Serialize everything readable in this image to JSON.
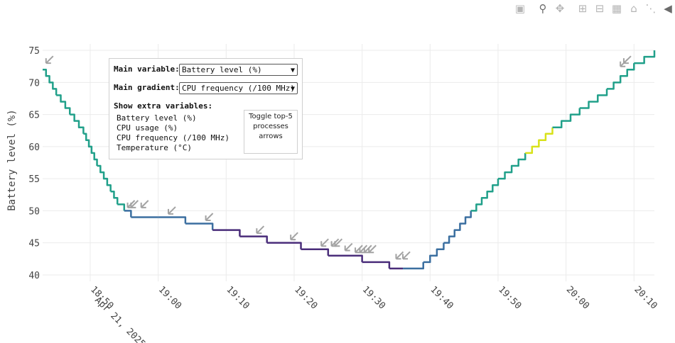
{
  "modebar": {
    "icons": [
      "camera-icon",
      "zoom-icon",
      "pan-icon",
      "zoom-in-icon",
      "zoom-out-icon",
      "autoscale-icon",
      "home-icon",
      "spike-icon",
      "hover-icon"
    ]
  },
  "controls": {
    "main_variable_label": "Main variable:",
    "main_variable_value": "Battery level (%)",
    "main_gradient_label": "Main gradient:",
    "main_gradient_value": "CPU frequency (/100 MHz)",
    "extra_title": "Show extra variables:",
    "extra_items": [
      "Battery level (%)",
      "CPU usage (%)",
      "CPU frequency (/100 MHz)",
      "Temperature (°C)"
    ],
    "toggle_label": "Toggle top-5 processes arrows"
  },
  "chart_data": {
    "type": "line",
    "title": "",
    "xlabel": "",
    "ylabel": "Battery level (%)",
    "ylim": [
      39,
      76
    ],
    "xlim": [
      "2025-04-21 18:43:00",
      "2025-04-21 20:13:00"
    ],
    "y_ticks": [
      40,
      45,
      50,
      55,
      60,
      65,
      70,
      75
    ],
    "x_ticks": [
      "2025-04-21 18:50",
      "2025-04-21 19:00",
      "2025-04-21 19:10",
      "2025-04-21 19:20",
      "2025-04-21 19:30",
      "2025-04-21 19:40",
      "2025-04-21 19:50",
      "2025-04-21 20:00",
      "2025-04-21 20:10"
    ],
    "x_tick_labels": [
      "18:50\nApr 21, 2025",
      "19:00",
      "19:10",
      "19:20",
      "19:30",
      "19:40",
      "19:50",
      "20:00",
      "20:10"
    ],
    "grid": true,
    "colors": {
      "line_high": "#21a08a",
      "line_low": "#4a2d7a",
      "line_mid": "#3b6fa0",
      "line_peak": "#d8e219",
      "arrow": "#a3a3a3"
    },
    "series": [
      {
        "x": [
          "2025-04-21 18:43:00",
          "2025-04-21 18:45:00",
          "2025-04-21 18:47:00",
          "2025-04-21 18:49:00",
          "2025-04-21 18:51:00",
          "2025-04-21 18:53:00",
          "2025-04-21 18:54:00",
          "2025-04-21 18:55:00",
          "2025-04-21 18:56:00",
          "2025-04-21 19:00:00",
          "2025-04-21 19:04:00",
          "2025-04-21 19:08:00",
          "2025-04-21 19:12:00",
          "2025-04-21 19:16:00",
          "2025-04-21 19:21:00",
          "2025-04-21 19:25:00",
          "2025-04-21 19:30:00",
          "2025-04-21 19:34:00",
          "2025-04-21 19:36:00",
          "2025-04-21 19:39:00",
          "2025-04-21 19:42:00",
          "2025-04-21 19:46:00",
          "2025-04-21 19:50:00",
          "2025-04-21 19:54:00",
          "2025-04-21 19:58:00",
          "2025-04-21 20:02:00",
          "2025-04-21 20:06:00",
          "2025-04-21 20:10:00",
          "2025-04-21 20:13:00"
        ],
        "y": [
          72,
          68,
          65,
          62,
          57,
          53,
          51,
          50,
          49,
          49,
          48,
          47,
          46,
          45,
          44,
          43,
          42,
          41,
          41,
          42,
          45,
          50,
          55,
          59,
          63,
          66,
          69,
          73,
          75
        ]
      }
    ],
    "arrow_times": [
      "2025-04-21 18:43:30",
      "2025-04-21 18:55:30",
      "2025-04-21 18:56:00",
      "2025-04-21 18:57:30",
      "2025-04-21 19:01:30",
      "2025-04-21 19:07:00",
      "2025-04-21 19:14:30",
      "2025-04-21 19:19:30",
      "2025-04-21 19:24:00",
      "2025-04-21 19:25:30",
      "2025-04-21 19:26:00",
      "2025-04-21 19:27:30",
      "2025-04-21 19:29:00",
      "2025-04-21 19:29:40",
      "2025-04-21 19:30:20",
      "2025-04-21 19:31:00",
      "2025-04-21 19:35:00",
      "2025-04-21 19:36:00",
      "2025-04-21 20:08:00",
      "2025-04-21 20:08:30"
    ],
    "arrow_levels": [
      73,
      50.5,
      50.5,
      50.5,
      49.5,
      48.5,
      46.5,
      45.5,
      44.5,
      44.5,
      44.5,
      43.8,
      43.5,
      43.5,
      43.5,
      43.5,
      42.5,
      42.5,
      72.5,
      73
    ]
  }
}
